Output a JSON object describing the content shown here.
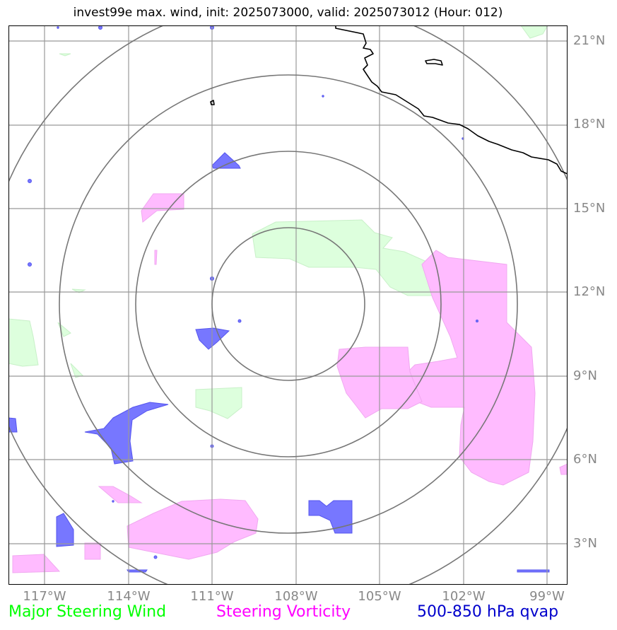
{
  "title": "invest99e max. wind, init: 2025073000, valid: 2025073012 (Hour: 012)",
  "map": {
    "lat_labels": [
      "21°N",
      "18°N",
      "15°N",
      "12°N",
      "9°N",
      "6°N",
      "3°N"
    ],
    "lon_labels": [
      "117°W",
      "114°W",
      "111°W",
      "108°W",
      "105°W",
      "102°W",
      "99°W"
    ],
    "storm_center": {
      "lat": 11.5,
      "lon": 108.2
    },
    "range_rings": 4
  },
  "legend": {
    "wind": {
      "label": "Major Steering Wind",
      "color": "#00ff00"
    },
    "vorticity": {
      "label": "Steering Vorticity",
      "color": "#ff00ff"
    },
    "qvap": {
      "label": "500-850 hPa qvap",
      "color": "#0000cc"
    }
  },
  "colors": {
    "wind_fill": "#ddffdd",
    "vorticity_fill": "#ffbbff",
    "qvap_fill": "#7777ff",
    "grid": "#999999",
    "rings": "#777777",
    "coastline": "#000000"
  }
}
